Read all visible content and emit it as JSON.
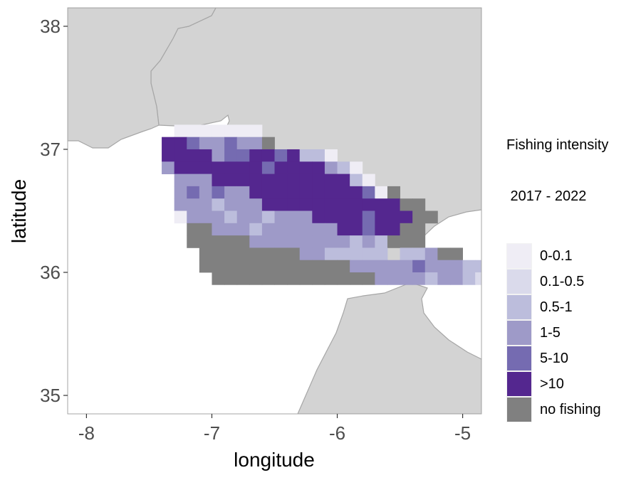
{
  "chart_data": {
    "type": "heatmap",
    "title": "",
    "xlabel": "longitude",
    "ylabel": "latitude",
    "xlim": [
      -8.15,
      -4.85
    ],
    "ylim": [
      34.85,
      38.15
    ],
    "x_ticks": [
      "-8",
      "-7",
      "-6",
      "-5"
    ],
    "y_ticks": [
      "35",
      "36",
      "37",
      "38"
    ],
    "cell_size_deg": 0.1,
    "legend": {
      "title_line1": "Fishing intensity",
      "title_line2": " 2017 - 2022",
      "placement": "right",
      "classes": [
        {
          "label": "0-0.1",
          "color": "#efedf5"
        },
        {
          "label": "0.1-0.5",
          "color": "#dadaeb"
        },
        {
          "label": "0.5-1",
          "color": "#bcbddc"
        },
        {
          "label": "1-5",
          "color": "#9e9ac8"
        },
        {
          "label": "5-10",
          "color": "#756bb1"
        },
        {
          "label": ">10",
          "color": "#54278f"
        },
        {
          "label": "no fishing",
          "color": "#808080"
        }
      ]
    },
    "rows_note": "Each row: latitude of cell lower edge, longitude of first cell lower edge, string of class codes (0..5 = intensity class index, n = no fishing, . = empty).",
    "rows": [
      {
        "lat": 37.1,
        "lon": -7.4,
        "cells": ".0000000.."
      },
      {
        "lat": 37.0,
        "lon": -7.4,
        "cells": "55433433n..."
      },
      {
        "lat": 36.9,
        "lon": -7.4,
        "cells": "55553445545220"
      },
      {
        "lat": 36.8,
        "lon": -7.4,
        "cells": "3555555545555320"
      },
      {
        "lat": 36.7,
        "lon": -7.4,
        "cells": ".3335555555555520"
      },
      {
        "lat": 36.6,
        "lon": -7.4,
        "cells": ".34343355555555540n"
      },
      {
        "lat": 36.5,
        "lon": -7.4,
        "cells": ".333233355555555555nn"
      },
      {
        "lat": 36.4,
        "lon": -7.4,
        "cells": ".0333233233355554555nn"
      },
      {
        "lat": 36.3,
        "lon": -7.4,
        "cells": "..nn333233333355455nn"
      },
      {
        "lat": 36.2,
        "lon": -7.4,
        "cells": "..nnnnn33333333232nnn"
      },
      {
        "lat": 36.1,
        "lon": -7.4,
        "cells": "...nnnnnnnn3322222.223nn"
      },
      {
        "lat": 36.0,
        "lon": -7.4,
        "cells": "...nnnnnnnnnnnn333334333221nnn"
      },
      {
        "lat": 35.9,
        "lon": -7.4,
        "cells": "....nnnnnnnnnnnnn3333233211nnnn"
      }
    ]
  }
}
